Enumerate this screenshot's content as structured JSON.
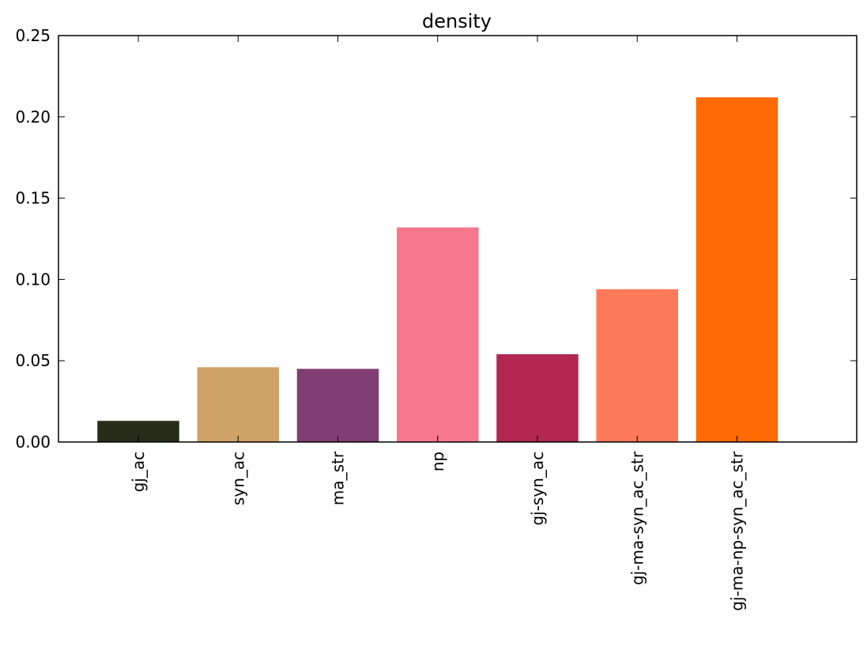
{
  "chart_data": {
    "type": "bar",
    "title": "density",
    "xlabel": "",
    "ylabel": "",
    "categories": [
      "gj_ac",
      "syn_ac",
      "ma_str",
      "np",
      "gj-syn_ac",
      "gj-ma-syn_ac_str",
      "gj-ma-np-syn_ac_str"
    ],
    "values": [
      0.013,
      0.046,
      0.045,
      0.132,
      0.054,
      0.094,
      0.212
    ],
    "colors": [
      "#262d1a",
      "#cfa365",
      "#7f3f73",
      "#f5788e",
      "#b22851",
      "#ff7a5a",
      "#ff6a05"
    ],
    "ylim": [
      0,
      0.25
    ],
    "yticks": [
      0.0,
      0.05,
      0.1,
      0.15,
      0.2,
      0.25
    ],
    "ytick_labels": [
      "0.00",
      "0.05",
      "0.10",
      "0.15",
      "0.20",
      "0.25"
    ],
    "grid": false,
    "legend": "none"
  }
}
